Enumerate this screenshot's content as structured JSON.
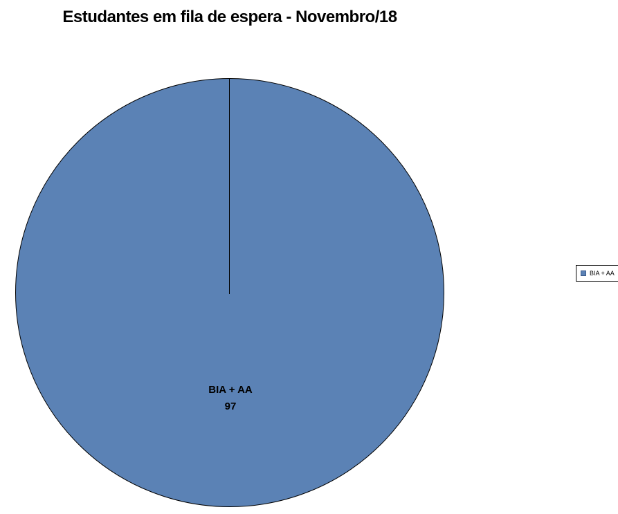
{
  "page": {
    "background_color": "#ffffff"
  },
  "chart_data": {
    "type": "pie",
    "title": "Estudantes em fila de espera - Novembro/18",
    "categories": [
      "BIA + AA"
    ],
    "values": [
      97
    ],
    "colors": [
      "#5b82b5"
    ],
    "slice_border_color": "#000000",
    "legend_position": "right",
    "legend_entries": [
      "BIA + AA"
    ],
    "data_labels": [
      {
        "category": "BIA + AA",
        "value": "97",
        "position": "inside-bottom"
      }
    ]
  },
  "legend": {
    "border_color": "#000000",
    "marker_color": "#5b82b5",
    "marker_border_color": "#3a5a8a"
  }
}
